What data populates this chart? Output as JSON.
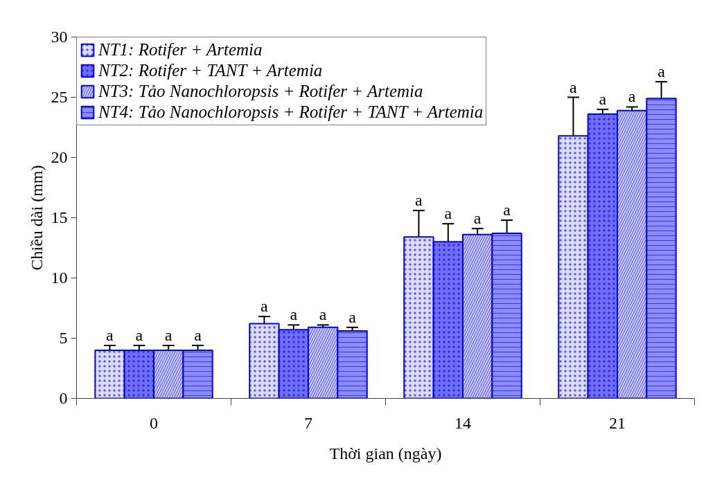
{
  "chart_data": {
    "type": "bar",
    "xlabel": "Thời gian (ngày)",
    "ylabel": "Chiều dài (mm)",
    "categories": [
      "0",
      "7",
      "14",
      "21"
    ],
    "series": [
      {
        "name": "NT1: Rotifer + Artemia",
        "color": "#dcdcff",
        "values": [
          4.0,
          6.2,
          13.4,
          21.8
        ],
        "errors": [
          [
            4.0,
            4.4
          ],
          [
            6.2,
            6.8
          ],
          [
            13.4,
            15.6
          ],
          [
            21.8,
            25.0
          ]
        ],
        "value_labels": [
          "a",
          "a",
          "a",
          "a"
        ]
      },
      {
        "name": "NT2: Rotifer + TANT + Artemia",
        "color": "#6f6ff0",
        "values": [
          4.0,
          5.7,
          13.0,
          23.6
        ],
        "errors": [
          [
            4.0,
            4.4
          ],
          [
            5.7,
            6.1
          ],
          [
            13.0,
            14.5
          ],
          [
            23.6,
            24.0
          ]
        ],
        "value_labels": [
          "a",
          "a",
          "a",
          "a"
        ]
      },
      {
        "name": "NT3: Tảo Nanochloropsis + Rotifer + Artemia",
        "color": "#c8c8ff",
        "values": [
          4.0,
          5.9,
          13.6,
          23.9
        ],
        "errors": [
          [
            4.0,
            4.4
          ],
          [
            5.9,
            6.1
          ],
          [
            13.6,
            14.1
          ],
          [
            23.9,
            24.2
          ]
        ],
        "value_labels": [
          "a",
          "a",
          "a",
          "a"
        ]
      },
      {
        "name": "NT4: Tảo Nanochloropsis + Rotifer + TANT + Artemia",
        "color": "#8c8cff",
        "values": [
          4.0,
          5.6,
          13.7,
          24.9
        ],
        "errors": [
          [
            4.0,
            4.4
          ],
          [
            5.6,
            5.9
          ],
          [
            13.7,
            14.8
          ],
          [
            24.9,
            26.3
          ]
        ],
        "value_labels": [
          "a",
          "a",
          "a",
          "a"
        ]
      }
    ],
    "ylim": [
      0,
      30
    ],
    "yticks": [
      0,
      5,
      10,
      15,
      20,
      25,
      30
    ],
    "grid": false,
    "legend": "top left"
  }
}
